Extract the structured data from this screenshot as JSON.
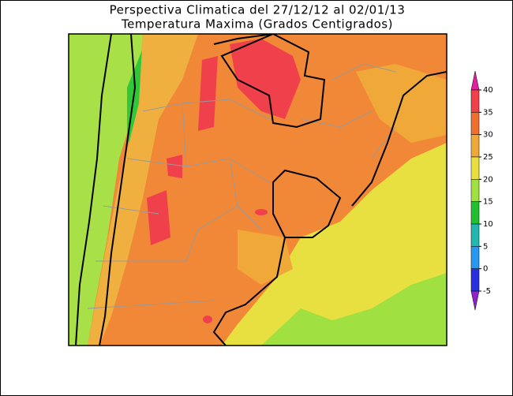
{
  "title": [
    "Perspectiva Climatica del 27/12/12 al 02/01/13",
    "Temperatura Maxima (Grados Centigrados)"
  ],
  "legend": {
    "ticks": [
      40,
      35,
      30,
      25,
      20,
      15,
      10,
      5,
      0,
      -5
    ],
    "colors": [
      "#e020a0",
      "#f0404c",
      "#f07030",
      "#f0a838",
      "#e8e040",
      "#a0e040",
      "#20c030",
      "#20b8b0",
      "#2898f0",
      "#2830e0",
      "#9020c8"
    ]
  }
}
